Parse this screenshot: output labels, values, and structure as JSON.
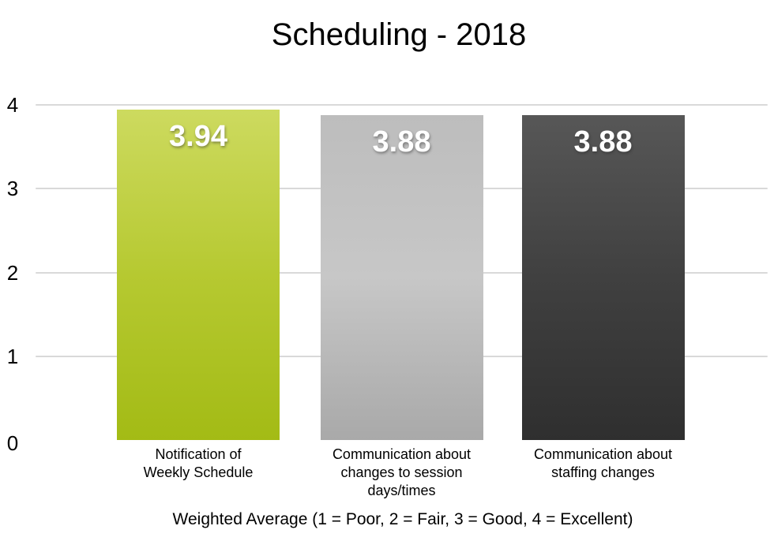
{
  "title": "Scheduling - 2018",
  "chart_data": {
    "type": "bar",
    "title": "Scheduling - 2018",
    "categories": [
      "Notification of\nWeekly Schedule",
      "Communication about\nchanges to session\ndays/times",
      "Communication about\nstaffing changes"
    ],
    "values": [
      3.94,
      3.88,
      3.88
    ],
    "value_labels": [
      "3.94",
      "3.88",
      "3.88"
    ],
    "xlabel": "Weighted Average (1 = Poor, 2 = Fair, 3 = Good, 4 = Excellent)",
    "ylabel": "",
    "ylim": [
      0,
      4
    ],
    "yticks": [
      0,
      1,
      2,
      3,
      4
    ],
    "grid": "horizontal-only",
    "legend": "none",
    "bar_value_label_position": "inside-top"
  },
  "colors": {
    "background": "#ffffff",
    "text": "#000000",
    "gridline": "#d9d9d9",
    "value_label_text": "#ffffff",
    "bar_gradients": [
      [
        "#cdda5f",
        "#b6c931",
        "#a3bb15"
      ],
      [
        "#bdbdbd",
        "#c7c7c7",
        "#a9a9a9"
      ],
      [
        "#575757",
        "#404040",
        "#2f2f2f"
      ]
    ]
  }
}
